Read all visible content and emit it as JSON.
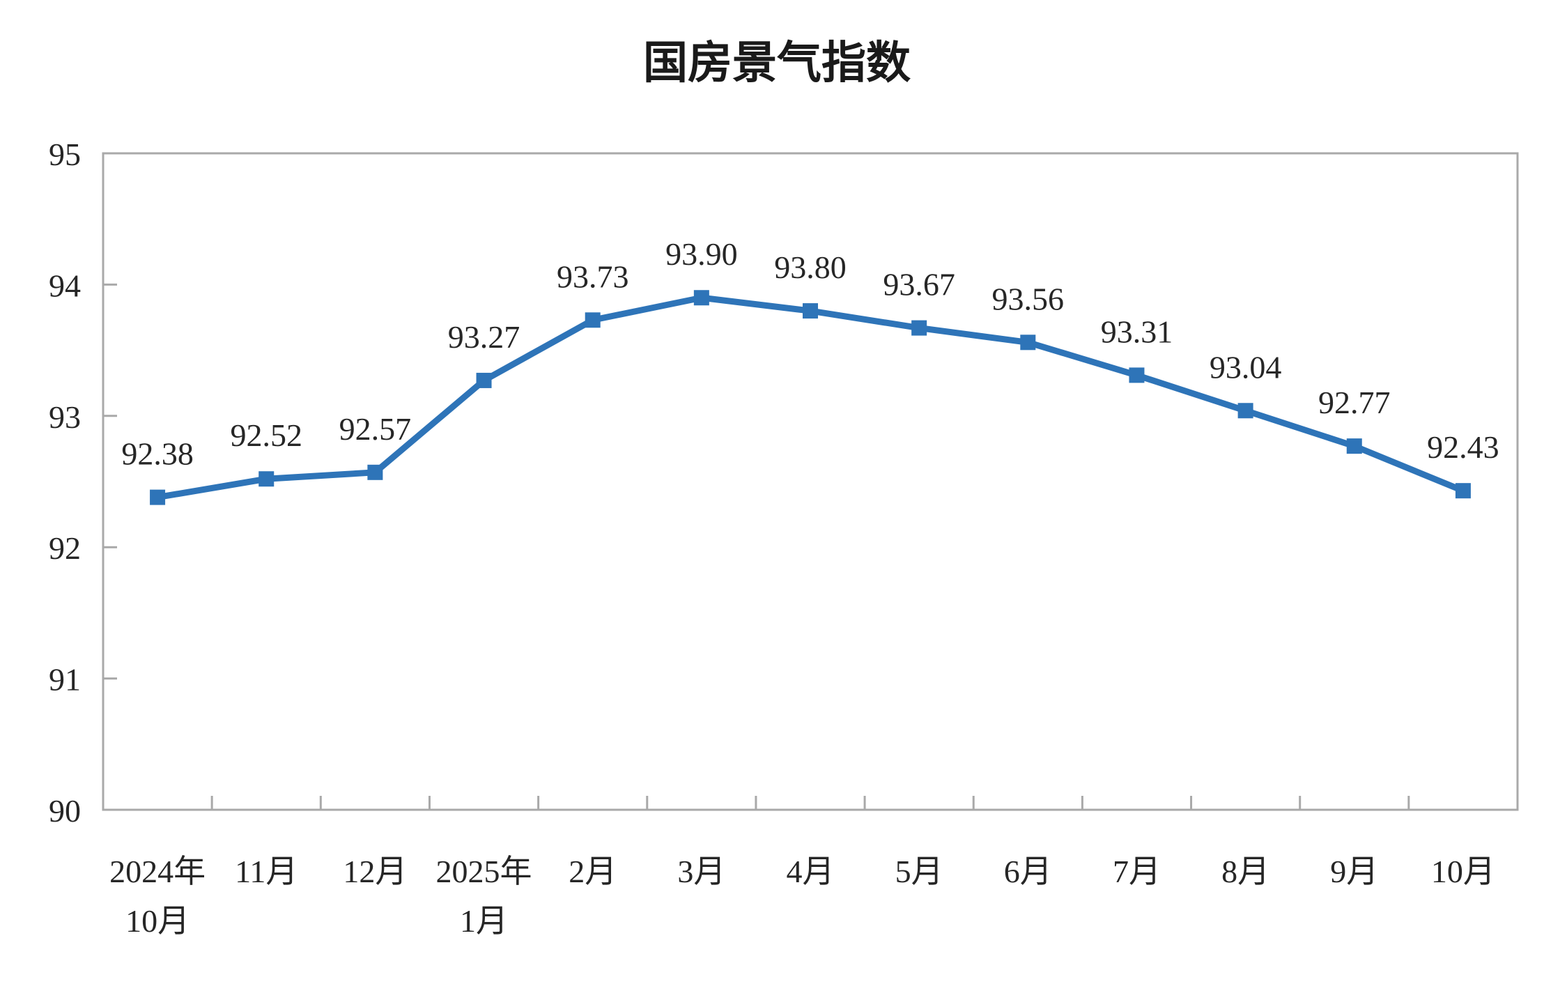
{
  "chart_data": {
    "type": "line",
    "title": "国房景气指数",
    "categories": [
      "2024年\n10月",
      "11月",
      "12月",
      "2025年\n1月",
      "2月",
      "3月",
      "4月",
      "5月",
      "6月",
      "7月",
      "8月",
      "9月",
      "10月"
    ],
    "values": [
      92.38,
      92.52,
      92.57,
      93.27,
      93.73,
      93.9,
      93.8,
      93.67,
      93.56,
      93.31,
      93.04,
      92.77,
      92.43
    ],
    "point_labels": [
      "92.38",
      "92.52",
      "92.57",
      "93.27",
      "93.73",
      "93.90",
      "93.80",
      "93.67",
      "93.56",
      "93.31",
      "93.04",
      "92.77",
      "92.43"
    ],
    "xlabel": "",
    "ylabel": "",
    "ylim": [
      90,
      95
    ],
    "yticks": [
      90,
      91,
      92,
      93,
      94,
      95
    ],
    "grid": false,
    "legend_position": "none",
    "marker": "square",
    "colors": {
      "line": "#2E74B8",
      "marker": "#2E74B8",
      "data_label": "#262626",
      "axis_label": "#262626",
      "axis_line": "#A9A9A9",
      "title": "#1A1A1A",
      "background": "#FFFFFF"
    }
  }
}
